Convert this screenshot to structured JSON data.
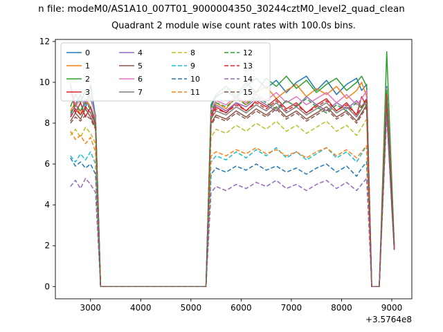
{
  "figure": {
    "suptitle": "n file: modeM0/AS1A10_007T01_9000004350_30244cztM0_level2_quad_clean",
    "axes_title": "Quadrant 2 module wise count rates with 100.0s bins."
  },
  "chart_data": {
    "type": "line",
    "title": "Quadrant 2 module wise count rates with 100.0s bins.",
    "xlabel": "",
    "ylabel": "",
    "x_offset_label": "+3.5764e8",
    "xlim": [
      2300,
      9400
    ],
    "ylim": [
      -0.6,
      12.1
    ],
    "x_ticks": [
      3000,
      4000,
      5000,
      6000,
      7000,
      8000,
      9000
    ],
    "y_ticks": [
      0,
      2,
      4,
      6,
      8,
      10,
      12
    ],
    "grid": false,
    "legend_position": "upper left",
    "legend_columns": 4,
    "x": [
      2600,
      2700,
      2800,
      2900,
      3000,
      3100,
      3200,
      5300,
      5400,
      5500,
      5700,
      5900,
      6100,
      6300,
      6500,
      6700,
      6900,
      7100,
      7300,
      7500,
      7700,
      7900,
      8100,
      8300,
      8400,
      8500,
      8600,
      8750,
      8900,
      9000,
      9050
    ],
    "series": [
      {
        "name": "0",
        "color": "#1f77b4",
        "dash": false,
        "values": [
          9.6,
          8.9,
          9.4,
          8.7,
          9.9,
          8.3,
          0,
          0,
          8.8,
          9.3,
          9.6,
          9.2,
          9.8,
          10.2,
          9.7,
          10.1,
          9.5,
          10.0,
          10.3,
          9.6,
          10.1,
          9.4,
          9.9,
          10.2,
          9.6,
          9.9,
          0,
          0,
          9.8,
          4.8,
          2.0
        ]
      },
      {
        "name": "1",
        "color": "#ff7f0e",
        "dash": false,
        "values": [
          8.6,
          9.0,
          8.4,
          9.2,
          8.8,
          8.0,
          0,
          0,
          8.5,
          9.0,
          8.7,
          9.3,
          8.9,
          9.5,
          9.8,
          9.2,
          9.6,
          9.9,
          9.3,
          9.7,
          9.4,
          9.8,
          9.2,
          9.6,
          10.0,
          9.3,
          0,
          0,
          9.6,
          4.6,
          1.9
        ]
      },
      {
        "name": "2",
        "color": "#2ca02c",
        "dash": false,
        "values": [
          8.8,
          9.4,
          9.0,
          9.6,
          9.2,
          8.4,
          0,
          0,
          8.9,
          9.4,
          9.8,
          9.3,
          10.0,
          9.5,
          10.2,
          9.8,
          10.3,
          9.7,
          10.1,
          9.5,
          9.9,
          10.2,
          9.6,
          10.0,
          10.3,
          9.8,
          0,
          0,
          11.5,
          5.2,
          2.1
        ]
      },
      {
        "name": "3",
        "color": "#d62728",
        "dash": false,
        "values": [
          9.9,
          8.5,
          9.0,
          8.3,
          8.8,
          8.1,
          0,
          0,
          8.4,
          8.8,
          8.5,
          9.0,
          8.6,
          9.1,
          8.8,
          9.2,
          8.7,
          9.0,
          8.5,
          8.9,
          9.2,
          8.6,
          9.0,
          8.4,
          9.3,
          8.8,
          0,
          0,
          9.4,
          4.4,
          1.9
        ]
      },
      {
        "name": "4",
        "color": "#9467bd",
        "dash": false,
        "values": [
          8.4,
          8.9,
          8.6,
          9.1,
          8.7,
          8.0,
          0,
          0,
          8.5,
          8.9,
          8.6,
          9.0,
          8.8,
          9.2,
          8.9,
          8.6,
          9.1,
          8.8,
          9.3,
          8.9,
          8.6,
          9.0,
          8.7,
          9.1,
          8.8,
          9.2,
          0,
          0,
          9.5,
          4.6,
          2.0
        ]
      },
      {
        "name": "5",
        "color": "#8c564b",
        "dash": false,
        "values": [
          8.1,
          8.5,
          8.2,
          8.7,
          8.3,
          7.8,
          0,
          0,
          8.0,
          8.4,
          8.2,
          8.6,
          8.3,
          8.7,
          8.4,
          8.8,
          8.3,
          8.6,
          8.2,
          8.5,
          8.8,
          8.3,
          8.6,
          8.1,
          8.5,
          8.9,
          0,
          0,
          9.2,
          4.3,
          1.8
        ]
      },
      {
        "name": "6",
        "color": "#e377c2",
        "dash": false,
        "values": [
          10.0,
          8.8,
          9.2,
          8.9,
          9.4,
          8.2,
          0,
          0,
          8.7,
          9.1,
          8.9,
          9.3,
          9.0,
          9.4,
          9.1,
          9.5,
          9.0,
          9.3,
          8.9,
          9.2,
          9.5,
          9.0,
          9.4,
          8.9,
          9.2,
          9.6,
          0,
          0,
          9.7,
          4.7,
          2.0
        ]
      },
      {
        "name": "7",
        "color": "#7f7f7f",
        "dash": false,
        "values": [
          8.3,
          8.7,
          8.4,
          8.8,
          8.5,
          7.9,
          0,
          0,
          8.2,
          8.6,
          8.4,
          8.8,
          8.5,
          8.9,
          8.6,
          9.0,
          8.5,
          8.8,
          8.4,
          8.7,
          9.0,
          8.5,
          8.8,
          8.3,
          8.7,
          9.1,
          0,
          0,
          9.3,
          4.5,
          1.9
        ]
      },
      {
        "name": "8",
        "color": "#bcbd22",
        "dash": true,
        "values": [
          7.4,
          7.7,
          7.3,
          7.8,
          7.5,
          7.0,
          0,
          0,
          7.3,
          7.7,
          7.5,
          7.9,
          7.6,
          8.0,
          7.7,
          8.1,
          7.6,
          7.9,
          7.5,
          7.8,
          8.1,
          7.6,
          7.9,
          7.4,
          7.8,
          8.2,
          0,
          0,
          9.0,
          4.2,
          1.8
        ]
      },
      {
        "name": "9",
        "color": "#17becf",
        "dash": true,
        "values": [
          6.4,
          6.1,
          6.5,
          6.2,
          6.6,
          6.0,
          0,
          0,
          6.1,
          6.4,
          6.2,
          6.6,
          6.3,
          6.7,
          6.4,
          6.8,
          6.3,
          6.6,
          6.2,
          6.5,
          6.8,
          6.3,
          6.6,
          6.1,
          6.5,
          6.9,
          0,
          0,
          8.8,
          4.0,
          1.8
        ]
      },
      {
        "name": "10",
        "color": "#1f77b4",
        "dash": true,
        "values": [
          6.3,
          5.9,
          6.1,
          5.8,
          6.0,
          5.5,
          0,
          0,
          5.5,
          5.8,
          5.6,
          5.9,
          5.7,
          6.0,
          5.7,
          5.9,
          5.6,
          5.8,
          5.5,
          5.8,
          6.0,
          5.6,
          5.9,
          5.4,
          5.8,
          6.1,
          0,
          0,
          8.6,
          3.9,
          1.8
        ]
      },
      {
        "name": "11",
        "color": "#ff7f0e",
        "dash": true,
        "values": [
          7.6,
          7.2,
          7.4,
          7.0,
          7.3,
          6.6,
          0,
          0,
          6.4,
          6.6,
          6.4,
          6.7,
          6.5,
          6.8,
          6.5,
          6.7,
          6.4,
          6.6,
          6.3,
          6.6,
          6.8,
          6.4,
          6.7,
          6.3,
          6.6,
          6.9,
          0,
          0,
          8.9,
          4.1,
          1.8
        ]
      },
      {
        "name": "12",
        "color": "#2ca02c",
        "dash": true,
        "values": [
          8.5,
          8.9,
          8.6,
          9.0,
          8.7,
          8.1,
          0,
          0,
          8.6,
          9.0,
          8.8,
          9.2,
          8.9,
          9.3,
          9.0,
          8.7,
          9.1,
          8.8,
          9.2,
          8.8,
          8.5,
          8.9,
          8.6,
          9.0,
          8.7,
          9.1,
          0,
          0,
          9.6,
          4.7,
          2.0
        ]
      },
      {
        "name": "13",
        "color": "#d62728",
        "dash": true,
        "values": [
          8.3,
          8.7,
          8.4,
          8.8,
          8.5,
          8.0,
          0,
          0,
          8.3,
          8.7,
          8.5,
          8.9,
          8.6,
          9.0,
          8.7,
          9.1,
          8.6,
          8.9,
          8.5,
          8.8,
          9.1,
          8.6,
          8.9,
          8.4,
          8.8,
          9.2,
          0,
          0,
          9.4,
          4.5,
          1.9
        ]
      },
      {
        "name": "14",
        "color": "#9467bd",
        "dash": true,
        "values": [
          4.9,
          5.2,
          4.8,
          5.3,
          5.0,
          4.6,
          0,
          0,
          4.6,
          4.9,
          4.7,
          5.0,
          4.8,
          5.1,
          4.9,
          5.2,
          4.8,
          5.0,
          4.7,
          5.0,
          5.2,
          4.8,
          5.1,
          4.7,
          5.0,
          5.3,
          0,
          0,
          8.4,
          3.8,
          1.8
        ]
      },
      {
        "name": "15",
        "color": "#8c564b",
        "dash": true,
        "values": [
          8.0,
          8.3,
          8.1,
          8.4,
          8.2,
          7.7,
          0,
          0,
          7.9,
          8.3,
          8.1,
          8.5,
          8.2,
          8.6,
          8.3,
          8.7,
          8.2,
          8.5,
          8.1,
          8.4,
          8.7,
          8.2,
          8.5,
          8.0,
          8.4,
          8.8,
          0,
          0,
          9.1,
          4.2,
          1.8
        ]
      }
    ]
  }
}
